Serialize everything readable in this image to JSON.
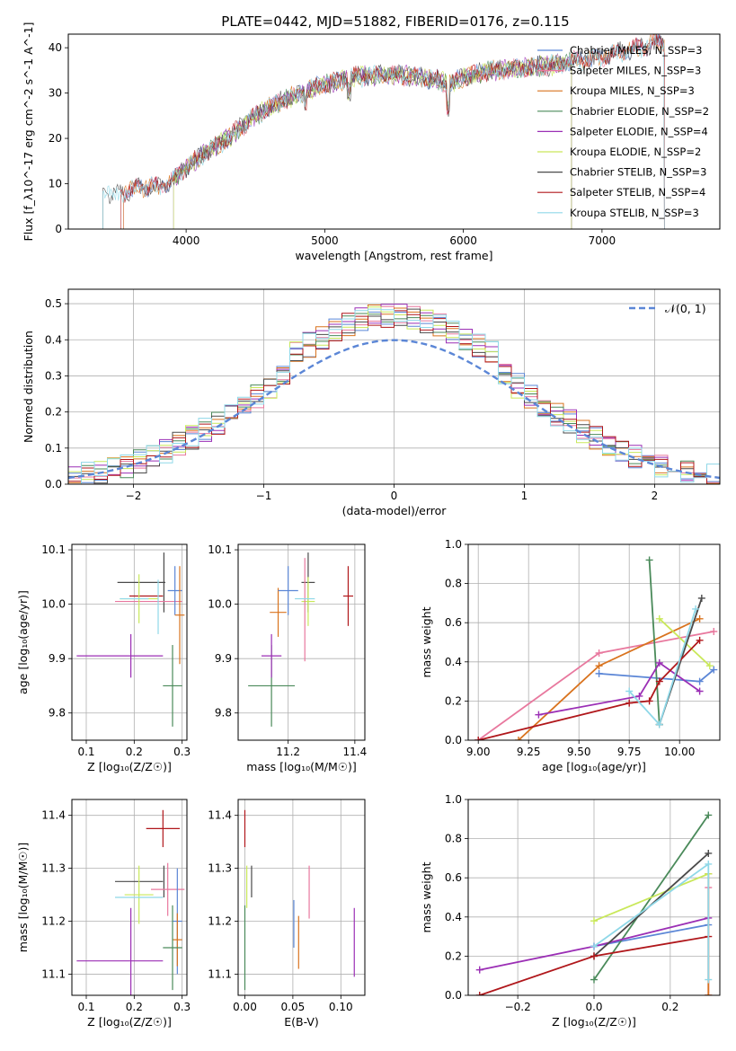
{
  "figure": {
    "title": "PLATE=0442, MJD=51882, FIBERID=0176, z=0.115"
  },
  "chart_data": [
    {
      "id": "spectrum",
      "type": "line",
      "title": "PLATE=0442, MJD=51882, FIBERID=0176, z=0.115",
      "xlabel": "wavelength [Angstrom, rest frame]",
      "ylabel": "Flux [f_λ10^-17 erg cm^-2 s^-1 A^-1]",
      "xlim": [
        3150,
        7850
      ],
      "ylim": [
        0,
        43
      ],
      "xticks": [
        4000,
        5000,
        6000,
        7000
      ],
      "yticks": [
        0,
        10,
        20,
        30,
        40
      ],
      "grid": false,
      "legend_position": "right",
      "continuum": {
        "x": [
          3400,
          3500,
          3650,
          3800,
          3900,
          4000,
          4100,
          4200,
          4300,
          4400,
          4500,
          4600,
          4700,
          4800,
          4900,
          5000,
          5200,
          5400,
          5600,
          5800,
          5900,
          6000,
          6200,
          6400,
          6600,
          6800,
          7000,
          7200,
          7400
        ],
        "y": [
          8,
          7.5,
          9,
          9.5,
          11,
          13.5,
          16,
          18,
          20,
          22.5,
          25,
          27,
          28.5,
          29.5,
          31,
          32,
          33.5,
          34,
          34,
          33,
          32,
          33.5,
          35,
          35.5,
          36,
          37,
          38,
          39.5,
          41
        ]
      },
      "series": [
        {
          "name": "Chabrier MILES, N_SSP=3",
          "color": "#5b86d6",
          "start": 3550,
          "end": 7450
        },
        {
          "name": "Salpeter MILES, N_SSP=3",
          "color": "#e8789e",
          "start": 3550,
          "end": 7450
        },
        {
          "name": "Kroupa MILES, N_SSP=3",
          "color": "#d9731e",
          "start": 3550,
          "end": 7450
        },
        {
          "name": "Chabrier ELODIE, N_SSP=2",
          "color": "#4a8a5a",
          "start": 3910,
          "end": 6780
        },
        {
          "name": "Salpeter ELODIE, N_SSP=4",
          "color": "#9b2fb5",
          "start": 3910,
          "end": 6780
        },
        {
          "name": "Kroupa ELODIE, N_SSP=2",
          "color": "#c9e85a",
          "start": 3910,
          "end": 6780
        },
        {
          "name": "Chabrier STELIB, N_SSP=3",
          "color": "#4a4a4a",
          "start": 3400,
          "end": 7450
        },
        {
          "name": "Salpeter STELIB, N_SSP=4",
          "color": "#b0171b",
          "start": 3530,
          "end": 7450
        },
        {
          "name": "Kroupa STELIB, N_SSP=3",
          "color": "#8fd8e8",
          "start": 3400,
          "end": 7450
        }
      ]
    },
    {
      "id": "residuals",
      "type": "histogram",
      "xlabel": "(data-model)/error",
      "ylabel": "Normed distribution",
      "xlim": [
        -2.5,
        2.5
      ],
      "ylim": [
        0,
        0.54
      ],
      "xticks": [
        -2,
        -1,
        0,
        1,
        2
      ],
      "yticks": [
        0.0,
        0.1,
        0.2,
        0.3,
        0.4,
        0.5
      ],
      "grid": true,
      "legend_position": "top-right",
      "legend": "𝒩(0, 1)",
      "reference_curve": {
        "type": "normal",
        "mean": 0,
        "sigma": 1,
        "color": "#5b86d6"
      },
      "bin_width": 0.1
    },
    {
      "id": "age_vs_Z",
      "type": "errorbar",
      "xlabel": "Z [log₁₀(Z/Z☉)]",
      "ylabel": "age  [log₁₀(age/yr)]",
      "xlim": [
        0.07,
        0.31
      ],
      "ylim": [
        9.75,
        10.11
      ],
      "xticks": [
        0.1,
        0.2,
        0.3
      ],
      "xtick_labels": [
        "0.1",
        "0.2",
        "0.3"
      ],
      "yticks": [
        9.8,
        9.9,
        10.0,
        10.1
      ],
      "grid": true,
      "points": [
        {
          "color": "#4a4a4a",
          "x": 0.215,
          "xerr": 0.05,
          "y": 10.04,
          "yerr": 0.0
        },
        {
          "color": "#4a4a4a",
          "x": 0.262,
          "xerr": 0.0,
          "y": 10.04,
          "yerr": 0.055
        },
        {
          "color": "#b0171b",
          "x": 0.225,
          "xerr": 0.035,
          "y": 10.015,
          "yerr": 0.0
        },
        {
          "color": "#e8789e",
          "x": 0.23,
          "xerr": 0.07,
          "y": 10.005,
          "yerr": 0.0
        },
        {
          "color": "#5b86d6",
          "x": 0.285,
          "xerr": 0.015,
          "y": 10.025,
          "yerr": 0.045
        },
        {
          "color": "#d9731e",
          "x": 0.295,
          "xerr": 0.01,
          "y": 9.98,
          "yerr": 0.09
        },
        {
          "color": "#c9e85a",
          "x": 0.21,
          "xerr": 0.04,
          "y": 10.01,
          "yerr": 0.045
        },
        {
          "color": "#8fd8e8",
          "x": 0.2,
          "xerr": 0.03,
          "y": 10.01,
          "yerr": 0.0
        },
        {
          "color": "#8fd8e8",
          "x": 0.25,
          "xerr": 0.0,
          "y": 9.995,
          "yerr": 0.05
        },
        {
          "color": "#9b2fb5",
          "x": 0.17,
          "xerr": 0.09,
          "y": 9.905,
          "yerr": 0.0
        },
        {
          "color": "#9b2fb5",
          "x": 0.193,
          "xerr": 0.0,
          "y": 9.905,
          "yerr": 0.04
        },
        {
          "color": "#4a8a5a",
          "x": 0.28,
          "xerr": 0.02,
          "y": 9.85,
          "yerr": 0.075
        }
      ]
    },
    {
      "id": "age_vs_mass",
      "type": "errorbar",
      "xlabel": "mass [log₁₀(M/M☉)]",
      "ylabel": "",
      "xlim": [
        11.05,
        11.43
      ],
      "ylim": [
        9.75,
        10.11
      ],
      "xticks": [
        11.2,
        11.4
      ],
      "yticks": [
        9.8,
        9.9,
        10.0,
        10.1
      ],
      "grid": true,
      "points": [
        {
          "color": "#4a8a5a",
          "x": 11.15,
          "xerr": 0.07,
          "y": 9.85,
          "yerr": 0.075
        },
        {
          "color": "#9b2fb5",
          "x": 11.15,
          "xerr": 0.03,
          "y": 9.905,
          "yerr": 0.04
        },
        {
          "color": "#d9731e",
          "x": 11.17,
          "xerr": 0.025,
          "y": 9.985,
          "yerr": 0.045
        },
        {
          "color": "#5b86d6",
          "x": 11.2,
          "xerr": 0.03,
          "y": 10.025,
          "yerr": 0.045
        },
        {
          "color": "#4a4a4a",
          "x": 11.26,
          "xerr": 0.02,
          "y": 10.04,
          "yerr": 0.055
        },
        {
          "color": "#c9e85a",
          "x": 11.26,
          "xerr": 0.02,
          "y": 10.005,
          "yerr": 0.045
        },
        {
          "color": "#e8789e",
          "x": 11.25,
          "xerr": 0.0,
          "y": 9.99,
          "yerr": 0.095
        },
        {
          "color": "#8fd8e8",
          "x": 11.25,
          "xerr": 0.03,
          "y": 10.01,
          "yerr": 0.0
        },
        {
          "color": "#b0171b",
          "x": 11.38,
          "xerr": 0.015,
          "y": 10.015,
          "yerr": 0.055
        }
      ]
    },
    {
      "id": "mass_weight_vs_age",
      "type": "line",
      "xlabel": "age  [log₁₀(age/yr)]",
      "ylabel": "mass weight",
      "xlim": [
        8.95,
        10.2
      ],
      "ylim": [
        0.0,
        1.0
      ],
      "xticks": [
        9.0,
        9.25,
        9.5,
        9.75,
        10.0
      ],
      "xtick_labels": [
        "9.00",
        "9.25",
        "9.50",
        "9.75",
        "10.00"
      ],
      "yticks": [
        0.0,
        0.2,
        0.4,
        0.6,
        0.8,
        1.0
      ],
      "grid": true,
      "series": [
        {
          "color": "#5b86d6",
          "x": [
            9.6,
            10.1,
            10.17
          ],
          "y": [
            0.34,
            0.3,
            0.36
          ]
        },
        {
          "color": "#e8789e",
          "x": [
            9.0,
            9.6,
            10.17
          ],
          "y": [
            0.0,
            0.445,
            0.555
          ]
        },
        {
          "color": "#d9731e",
          "x": [
            9.2,
            9.6,
            10.1
          ],
          "y": [
            0.0,
            0.38,
            0.62
          ]
        },
        {
          "color": "#4a8a5a",
          "x": [
            9.85,
            9.9
          ],
          "y": [
            0.92,
            0.08
          ]
        },
        {
          "color": "#9b2fb5",
          "x": [
            9.3,
            9.8,
            9.9,
            10.1
          ],
          "y": [
            0.13,
            0.225,
            0.395,
            0.25
          ]
        },
        {
          "color": "#c9e85a",
          "x": [
            9.9,
            10.15
          ],
          "y": [
            0.62,
            0.38
          ]
        },
        {
          "color": "#4a4a4a",
          "x": [
            9.9,
            10.11
          ],
          "y": [
            0.08,
            0.725
          ]
        },
        {
          "color": "#b0171b",
          "x": [
            9.0,
            9.75,
            9.85,
            9.9,
            10.1
          ],
          "y": [
            0.0,
            0.19,
            0.2,
            0.3,
            0.51
          ]
        },
        {
          "color": "#8fd8e8",
          "x": [
            9.75,
            9.9,
            10.08
          ],
          "y": [
            0.25,
            0.08,
            0.67
          ]
        }
      ]
    },
    {
      "id": "mass_vs_Z",
      "type": "errorbar",
      "xlabel": "Z [log₁₀(Z/Z☉)]",
      "ylabel": "mass [log₁₀(M/M☉)]",
      "xlim": [
        0.07,
        0.31
      ],
      "ylim": [
        11.06,
        11.43
      ],
      "xticks": [
        0.1,
        0.2,
        0.3
      ],
      "xtick_labels": [
        "0.1",
        "0.2",
        "0.3"
      ],
      "yticks": [
        11.1,
        11.2,
        11.3,
        11.4
      ],
      "grid": true,
      "points": [
        {
          "color": "#b0171b",
          "x": 0.26,
          "xerr": 0.035,
          "y": 11.375,
          "yerr": 0.035
        },
        {
          "color": "#4a4a4a",
          "x": 0.21,
          "xerr": 0.05,
          "y": 11.275,
          "yerr": 0.0
        },
        {
          "color": "#4a4a4a",
          "x": 0.262,
          "xerr": 0.0,
          "y": 11.275,
          "yerr": 0.03
        },
        {
          "color": "#e8789e",
          "x": 0.27,
          "xerr": 0.035,
          "y": 11.26,
          "yerr": 0.05
        },
        {
          "color": "#c9e85a",
          "x": 0.21,
          "xerr": 0.03,
          "y": 11.25,
          "yerr": 0.055
        },
        {
          "color": "#8fd8e8",
          "x": 0.21,
          "xerr": 0.05,
          "y": 11.245,
          "yerr": 0.0
        },
        {
          "color": "#5b86d6",
          "x": 0.29,
          "xerr": 0.01,
          "y": 11.2,
          "yerr": 0.1
        },
        {
          "color": "#d9731e",
          "x": 0.29,
          "xerr": 0.01,
          "y": 11.165,
          "yerr": 0.05
        },
        {
          "color": "#4a8a5a",
          "x": 0.28,
          "xerr": 0.02,
          "y": 11.15,
          "yerr": 0.08
        },
        {
          "color": "#9b2fb5",
          "x": 0.17,
          "xerr": 0.09,
          "y": 11.125,
          "yerr": 0.0
        },
        {
          "color": "#9b2fb5",
          "x": 0.193,
          "xerr": 0.0,
          "y": 11.125,
          "yerr": 0.1
        }
      ]
    },
    {
      "id": "mass_vs_ebv",
      "type": "errorbar",
      "xlabel": "E(B-V)",
      "ylabel": "",
      "xlim": [
        -0.007,
        0.125
      ],
      "ylim": [
        11.06,
        11.43
      ],
      "xticks": [
        0.0,
        0.05,
        0.1
      ],
      "xtick_labels": [
        "0.00",
        "0.05",
        "0.10"
      ],
      "yticks": [
        11.1,
        11.2,
        11.3,
        11.4
      ],
      "grid": true,
      "points": [
        {
          "color": "#b0171b",
          "x": 0.0,
          "xerr": 0.0,
          "y": 11.375,
          "yerr": 0.035
        },
        {
          "color": "#4a4a4a",
          "x": 0.007,
          "xerr": 0.0,
          "y": 11.275,
          "yerr": 0.03
        },
        {
          "color": "#c9e85a",
          "x": 0.002,
          "xerr": 0.0,
          "y": 11.265,
          "yerr": 0.04
        },
        {
          "color": "#4a8a5a",
          "x": 0.0,
          "xerr": 0.0,
          "y": 11.15,
          "yerr": 0.08
        },
        {
          "color": "#5b86d6",
          "x": 0.051,
          "xerr": 0.0,
          "y": 11.195,
          "yerr": 0.045
        },
        {
          "color": "#d9731e",
          "x": 0.056,
          "xerr": 0.0,
          "y": 11.16,
          "yerr": 0.05
        },
        {
          "color": "#e8789e",
          "x": 0.067,
          "xerr": 0.0,
          "y": 11.255,
          "yerr": 0.05
        },
        {
          "color": "#9b2fb5",
          "x": 0.114,
          "xerr": 0.0,
          "y": 11.16,
          "yerr": 0.065
        }
      ]
    },
    {
      "id": "mass_weight_vs_Z",
      "type": "line",
      "xlabel": "Z [log₁₀(Z/Z☉)]",
      "ylabel": "mass weight",
      "xlim": [
        -0.33,
        0.33
      ],
      "ylim": [
        0.0,
        1.0
      ],
      "xticks": [
        -0.2,
        0.0,
        0.2
      ],
      "xtick_labels": [
        "−0.2",
        "0.0",
        "0.2"
      ],
      "yticks": [
        0.0,
        0.2,
        0.4,
        0.6,
        0.8,
        1.0
      ],
      "grid": true,
      "series": [
        {
          "color": "#5b86d6",
          "x": [
            0.0,
            0.3
          ],
          "y": [
            0.25,
            0.36
          ]
        },
        {
          "color": "#e8789e",
          "x": [
            0.3,
            0.3
          ],
          "y": [
            0.0,
            0.55
          ]
        },
        {
          "color": "#d9731e",
          "x": [
            0.3,
            0.3
          ],
          "y": [
            0.0,
            0.62
          ]
        },
        {
          "color": "#4a8a5a",
          "x": [
            0.0,
            0.3
          ],
          "y": [
            0.08,
            0.92
          ]
        },
        {
          "color": "#9b2fb5",
          "x": [
            -0.3,
            0.0,
            0.3
          ],
          "y": [
            0.13,
            0.25,
            0.395
          ]
        },
        {
          "color": "#c9e85a",
          "x": [
            0.0,
            0.3
          ],
          "y": [
            0.38,
            0.62
          ]
        },
        {
          "color": "#4a4a4a",
          "x": [
            0.0,
            0.3
          ],
          "y": [
            0.2,
            0.725
          ]
        },
        {
          "color": "#b0171b",
          "x": [
            -0.3,
            0.0,
            0.3
          ],
          "y": [
            0.0,
            0.2,
            0.3
          ]
        },
        {
          "color": "#8fd8e8",
          "x": [
            0.0,
            0.3,
            0.3
          ],
          "y": [
            0.25,
            0.67,
            0.08
          ]
        }
      ]
    }
  ]
}
